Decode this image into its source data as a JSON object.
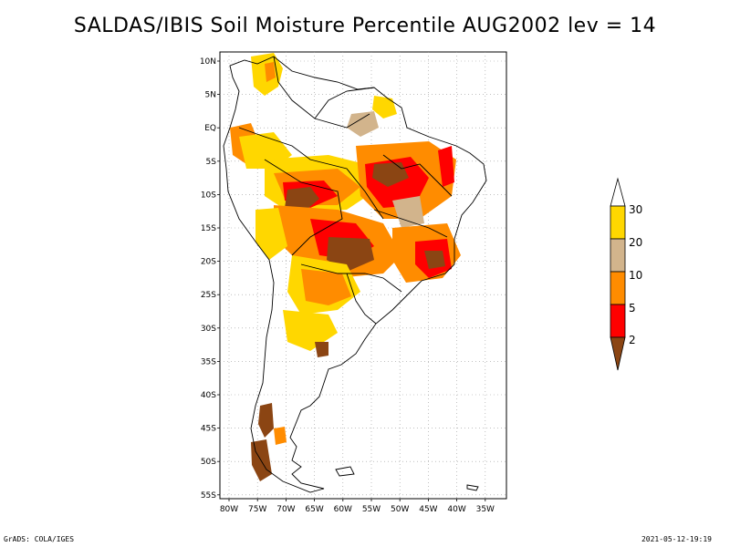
{
  "title": "SALDAS/IBIS Soil Moisture Percentile AUG2002 lev = 14",
  "footer": {
    "left": "GrADS: COLA/IGES",
    "right": "2021-05-12-19:19"
  },
  "axes": {
    "lat_labels": [
      "10N",
      "5N",
      "EQ",
      "5S",
      "10S",
      "15S",
      "20S",
      "25S",
      "30S",
      "35S",
      "40S",
      "45S",
      "50S",
      "55S"
    ],
    "lon_labels": [
      "80W",
      "75W",
      "70W",
      "65W",
      "60W",
      "55W",
      "50W",
      "45W",
      "40W",
      "35W"
    ],
    "lat_range": [
      -56,
      12
    ],
    "lon_range": [
      -81,
      -33
    ],
    "grid": true
  },
  "legend": {
    "labels": [
      "2",
      "5",
      "10",
      "20",
      "30"
    ],
    "colors": {
      "below_2": "#8b4513",
      "2_5": "#ff0000",
      "5_10": "#ff8c00",
      "10_20": "#d2b48c",
      "20_30": "#ffd700",
      "above_30": "#ffffff"
    }
  }
}
